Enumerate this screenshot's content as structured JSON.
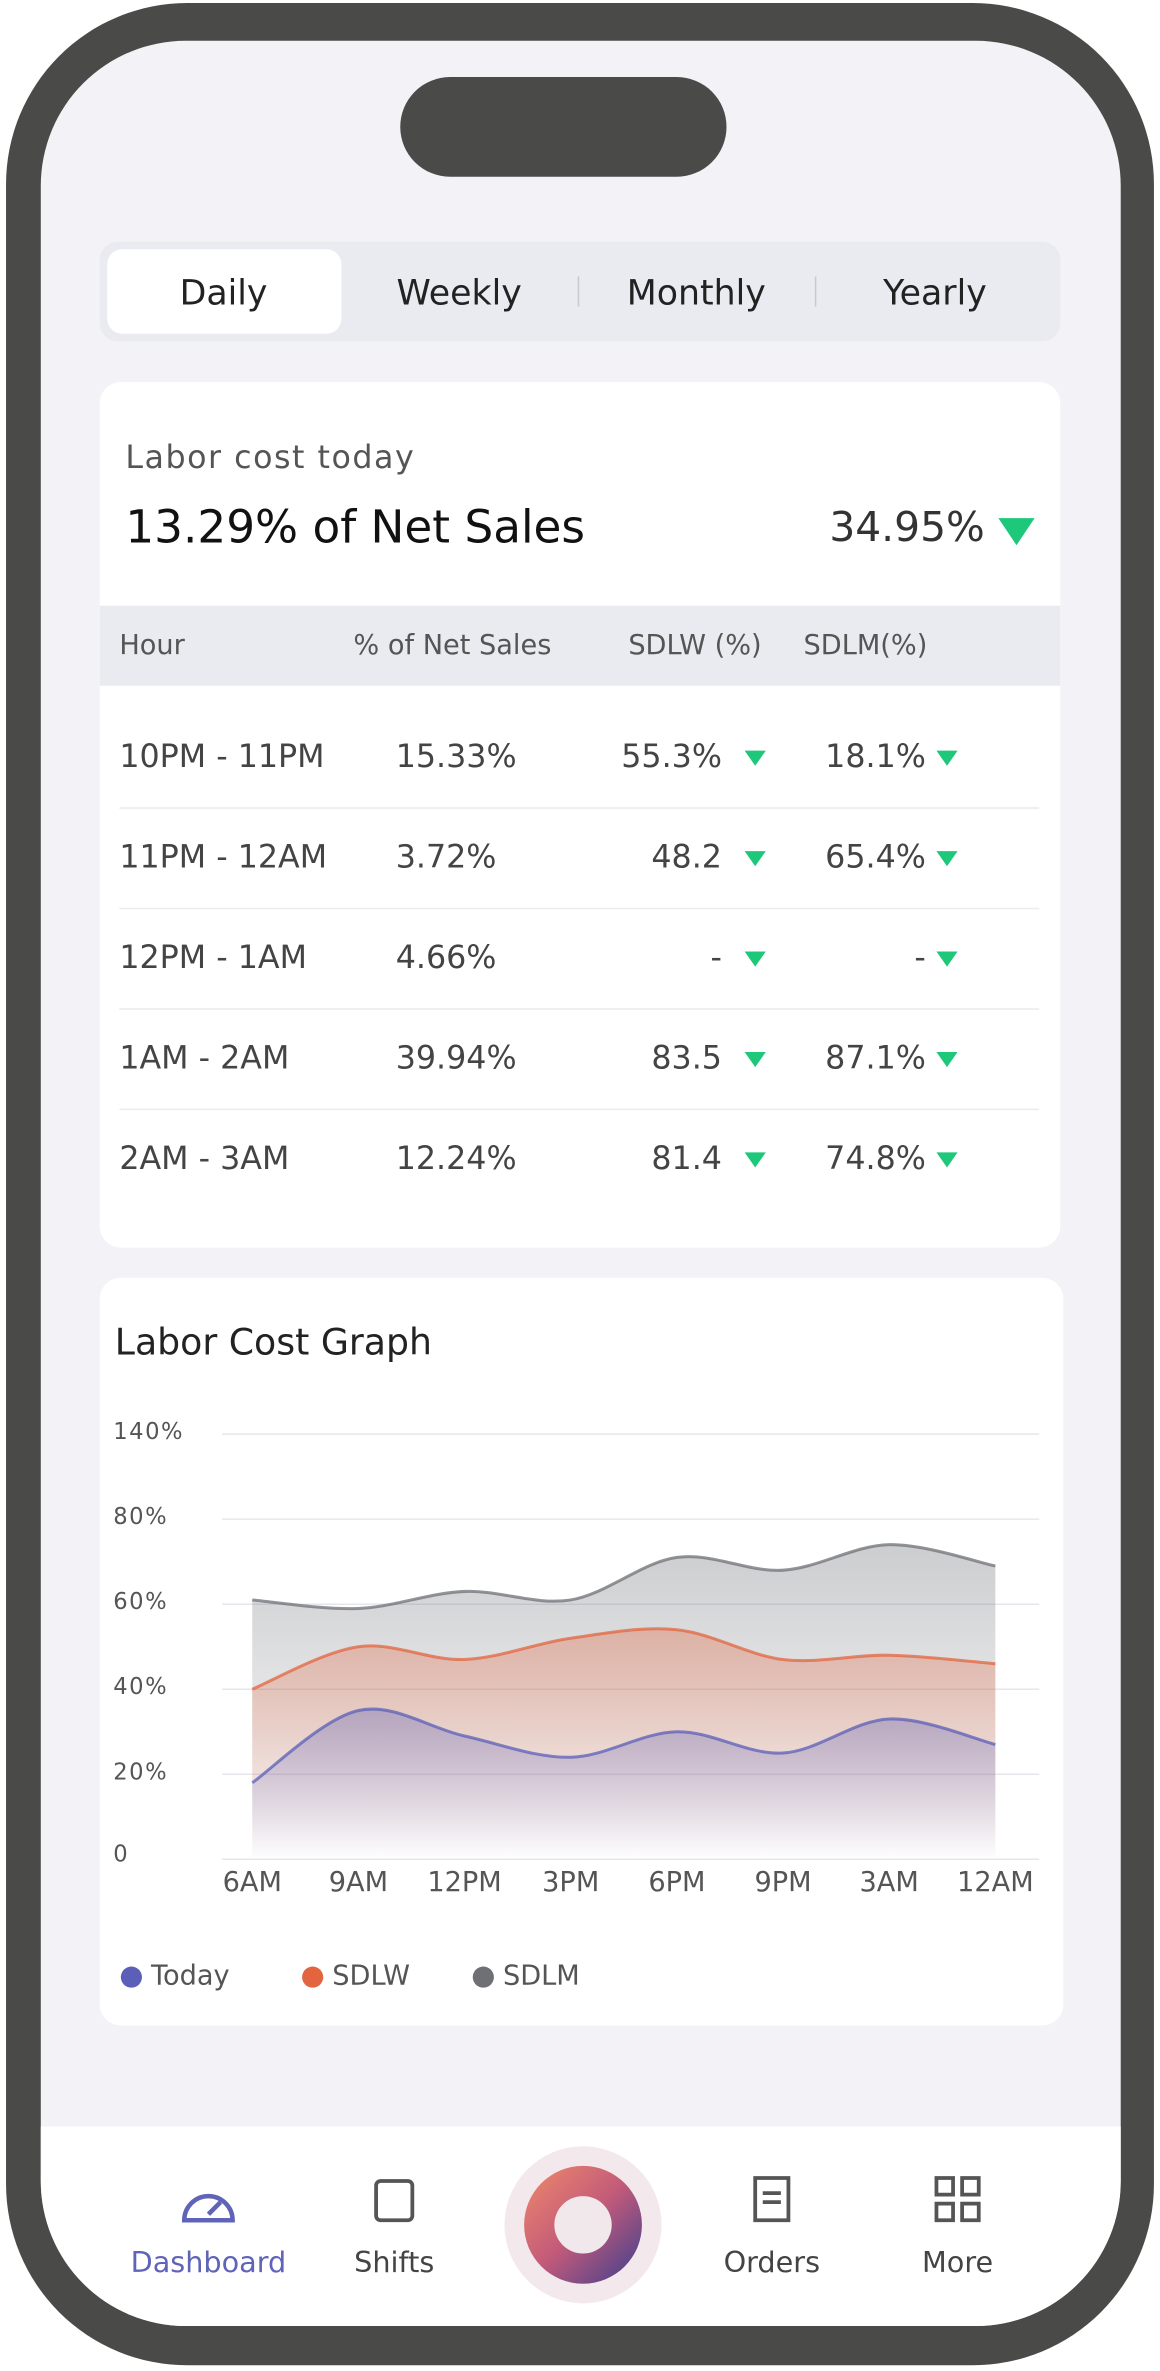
{
  "segments": [
    "Daily",
    "Weekly",
    "Monthly",
    "Yearly"
  ],
  "summary": {
    "label": "Labor cost today",
    "headline": "13.29% of Net Sales",
    "change": "34.95%"
  },
  "table": {
    "header": [
      "Hour",
      "% of Net Sales",
      "SDLW (%)",
      "SDLM(%)"
    ],
    "rows": [
      [
        "10PM - 11PM",
        "15.33%",
        "55.3%",
        "18.1%"
      ],
      [
        "11PM - 12AM",
        "3.72%",
        "48.2",
        "65.4%"
      ],
      [
        "12PM - 1AM",
        "4.66%",
        "-",
        "-"
      ],
      [
        "1AM - 2AM",
        "39.94%",
        "83.5",
        "87.1%"
      ],
      [
        "2AM - 3AM",
        "12.24%",
        "81.4",
        "74.8%"
      ]
    ]
  },
  "chart": {
    "type": "area",
    "title": "Labor Cost Graph",
    "categories": [
      "6AM",
      "9AM",
      "12PM",
      "3PM",
      "6PM",
      "9PM",
      "3AM",
      "12AM"
    ],
    "yticks": [
      0,
      {
        "value": 20,
        "label": "20%"
      },
      {
        "value": 40,
        "label": "40%"
      },
      {
        "value": 60,
        "label": "60%"
      },
      {
        "value": 80,
        "label": "80%"
      },
      {
        "value": 140,
        "label": "140%"
      }
    ],
    "ylim": [
      0,
      140
    ],
    "grid": true,
    "series": [
      {
        "name": "Today",
        "color": "#5b5fb8",
        "values": [
          18,
          35,
          29,
          24,
          30,
          25,
          33,
          27
        ]
      },
      {
        "name": "SDLW",
        "color": "#e2653f",
        "values": [
          40,
          50,
          47,
          52,
          54,
          47,
          48,
          46
        ]
      },
      {
        "name": "SDLM",
        "color": "#6e7076",
        "values": [
          61,
          59,
          63,
          61,
          71,
          68,
          74,
          69
        ]
      }
    ]
  },
  "nav": [
    "Dashboard",
    "Shifts",
    "Orders",
    "More"
  ]
}
